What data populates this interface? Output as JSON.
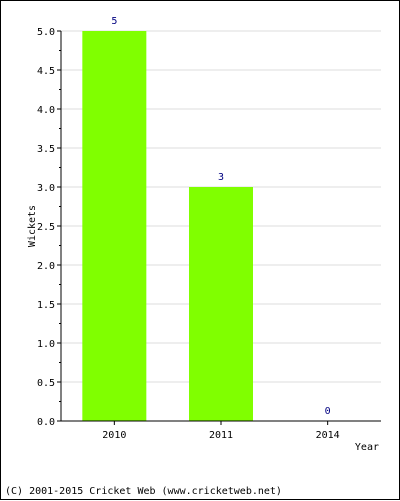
{
  "chart_data": {
    "type": "bar",
    "categories": [
      "2010",
      "2011",
      "2014"
    ],
    "values": [
      5,
      3,
      0
    ],
    "data_labels": [
      "5",
      "3",
      "0"
    ],
    "xlabel": "Year",
    "ylabel": "Wickets",
    "ylim": [
      0,
      5
    ],
    "yticks": [
      "0.0",
      "0.5",
      "1.0",
      "1.5",
      "2.0",
      "2.5",
      "3.0",
      "3.5",
      "4.0",
      "4.5",
      "5.0"
    ],
    "grid": true,
    "bar_color": "#80ff00",
    "label_color": "#000080"
  },
  "footer": {
    "credit": "(C) 2001-2015 Cricket Web (www.cricketweb.net)"
  }
}
